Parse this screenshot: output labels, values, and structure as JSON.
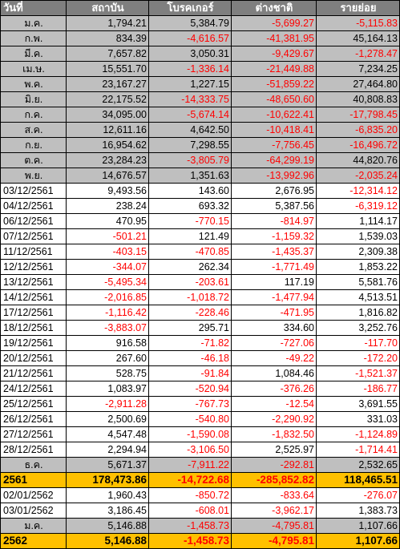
{
  "table": {
    "headers": [
      "วันที่",
      "สถาบัน",
      "โบรคเกอร์",
      "ต่างชาติ",
      "รายย่อย"
    ],
    "rows": [
      {
        "type": "month",
        "cells": [
          "ม.ค.",
          "1,794.21",
          "5,384.79",
          "-5,699.27",
          "-5,115.83"
        ]
      },
      {
        "type": "month",
        "cells": [
          "ก.พ.",
          "834.39",
          "-4,616.57",
          "-41,381.95",
          "45,164.13"
        ]
      },
      {
        "type": "month",
        "cells": [
          "มี.ค.",
          "7,657.82",
          "3,050.31",
          "-9,429.67",
          "-1,278.47"
        ]
      },
      {
        "type": "month",
        "cells": [
          "เม.ษ.",
          "15,551.70",
          "-1,336.14",
          "-21,449.88",
          "7,234.25"
        ]
      },
      {
        "type": "month",
        "cells": [
          "พ.ค.",
          "23,167.27",
          "1,227.15",
          "-51,859.22",
          "27,464.80"
        ]
      },
      {
        "type": "month",
        "cells": [
          "มิ.ย.",
          "22,175.52",
          "-14,333.75",
          "-48,650.60",
          "40,808.83"
        ]
      },
      {
        "type": "month",
        "cells": [
          "ก.ค.",
          "34,095.00",
          "-5,674.14",
          "-10,622.41",
          "-17,798.45"
        ]
      },
      {
        "type": "month",
        "cells": [
          "ส.ค.",
          "12,611.16",
          "4,642.50",
          "-10,418.41",
          "-6,835.20"
        ]
      },
      {
        "type": "month",
        "cells": [
          "ก.ย.",
          "16,954.62",
          "7,298.55",
          "-7,756.45",
          "-16,496.72"
        ]
      },
      {
        "type": "month",
        "cells": [
          "ต.ค.",
          "23,284.23",
          "-3,805.79",
          "-64,299.19",
          "44,820.76"
        ]
      },
      {
        "type": "month",
        "cells": [
          "พ.ย.",
          "14,676.57",
          "1,351.63",
          "-13,992.96",
          "-2,035.24"
        ]
      },
      {
        "type": "day",
        "cells": [
          "03/12/2561",
          "9,493.56",
          "143.60",
          "2,676.95",
          "-12,314.12"
        ]
      },
      {
        "type": "day",
        "cells": [
          "04/12/2561",
          "238.24",
          "693.32",
          "5,387.56",
          "-6,319.12"
        ]
      },
      {
        "type": "day",
        "cells": [
          "06/12/2561",
          "470.95",
          "-770.15",
          "-814.97",
          "1,114.17"
        ]
      },
      {
        "type": "day",
        "cells": [
          "07/12/2561",
          "-501.21",
          "121.49",
          "-1,159.32",
          "1,539.03"
        ]
      },
      {
        "type": "day",
        "cells": [
          "11/12/2561",
          "-403.15",
          "-470.85",
          "-1,435.37",
          "2,309.38"
        ]
      },
      {
        "type": "day",
        "cells": [
          "12/12/2561",
          "-344.07",
          "262.34",
          "-1,771.49",
          "1,853.22"
        ]
      },
      {
        "type": "day",
        "cells": [
          "13/12/2561",
          "-5,495.34",
          "-203.61",
          "117.19",
          "5,581.76"
        ]
      },
      {
        "type": "day",
        "cells": [
          "14/12/2561",
          "-2,016.85",
          "-1,018.72",
          "-1,477.94",
          "4,513.51"
        ]
      },
      {
        "type": "day",
        "cells": [
          "17/12/2561",
          "-1,116.42",
          "-228.46",
          "-471.95",
          "1,816.82"
        ]
      },
      {
        "type": "day",
        "cells": [
          "18/12/2561",
          "-3,883.07",
          "295.71",
          "334.60",
          "3,252.76"
        ]
      },
      {
        "type": "day",
        "cells": [
          "19/12/2561",
          "916.58",
          "-71.82",
          "-727.06",
          "-117.70"
        ]
      },
      {
        "type": "day",
        "cells": [
          "20/12/2561",
          "267.60",
          "-46.18",
          "-49.22",
          "-172.20"
        ]
      },
      {
        "type": "day",
        "cells": [
          "21/12/2561",
          "528.75",
          "-91.84",
          "1,084.46",
          "-1,521.37"
        ]
      },
      {
        "type": "day",
        "cells": [
          "24/12/2561",
          "1,083.97",
          "-520.94",
          "-376.26",
          "-186.77"
        ]
      },
      {
        "type": "day",
        "cells": [
          "25/12/2561",
          "-2,911.28",
          "-767.73",
          "-12.54",
          "3,691.55"
        ]
      },
      {
        "type": "day",
        "cells": [
          "26/12/2561",
          "2,500.69",
          "-540.80",
          "-2,290.92",
          "331.03"
        ]
      },
      {
        "type": "day",
        "cells": [
          "27/12/2561",
          "4,547.48",
          "-1,590.08",
          "-1,832.50",
          "-1,124.89"
        ]
      },
      {
        "type": "day",
        "cells": [
          "28/12/2561",
          "2,294.94",
          "-3,106.50",
          "2,525.97",
          "-1,714.41"
        ]
      },
      {
        "type": "month",
        "cells": [
          "ธ.ค.",
          "5,671.37",
          "-7,911.22",
          "-292.81",
          "2,532.65"
        ]
      },
      {
        "type": "year",
        "cells": [
          "2561",
          "178,473.86",
          "-14,722.68",
          "-285,852.82",
          "118,465.51"
        ]
      },
      {
        "type": "day",
        "cells": [
          "02/01/2562",
          "1,960.43",
          "-850.72",
          "-833.64",
          "-276.07"
        ]
      },
      {
        "type": "day",
        "cells": [
          "03/01/2562",
          "3,186.45",
          "-608.01",
          "-3,962.17",
          "1,383.73"
        ]
      },
      {
        "type": "month",
        "cells": [
          "ม.ค.",
          "5,146.88",
          "-1,458.73",
          "-4,795.81",
          "1,107.66"
        ]
      },
      {
        "type": "year",
        "cells": [
          "2562",
          "5,146.88",
          "-1,458.73",
          "-4,795.81",
          "1,107.66"
        ]
      }
    ],
    "colors": {
      "header_bg": "#7f7f7f",
      "header_text": "#ffffff",
      "month_bg": "#bfbfbf",
      "year_bg": "#ffc000",
      "negative": "#ff0000",
      "positive": "#000000"
    }
  }
}
